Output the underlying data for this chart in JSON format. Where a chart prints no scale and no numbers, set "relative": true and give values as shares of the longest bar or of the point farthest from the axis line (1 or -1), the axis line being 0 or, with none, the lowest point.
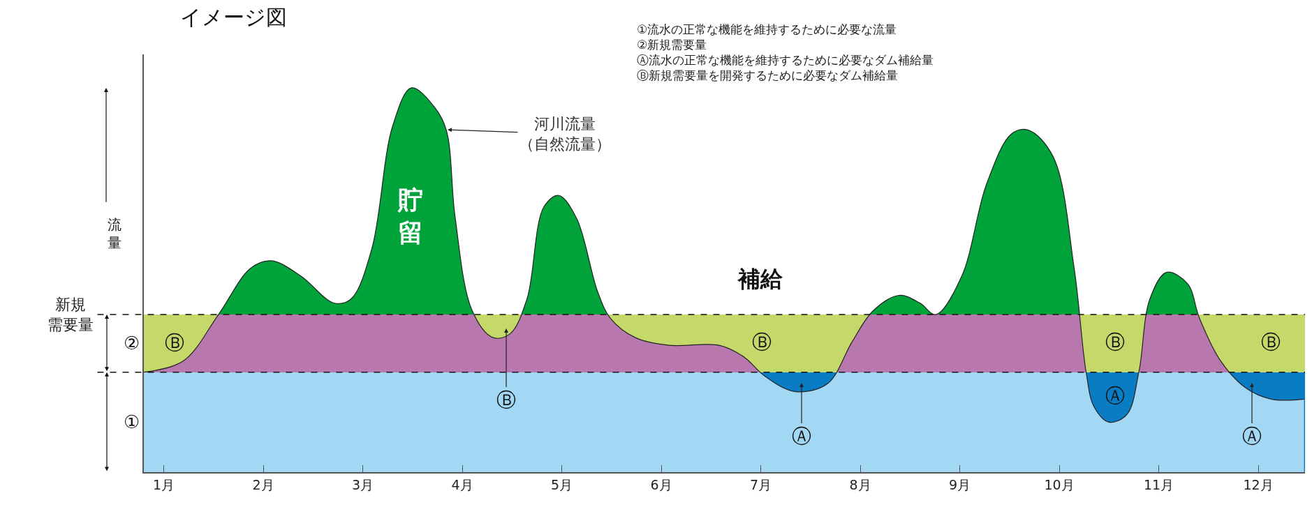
{
  "chart_data": {
    "type": "area",
    "relative": true,
    "title": "イメージ図",
    "ylabel": "流量",
    "x": [
      0.8,
      1.2,
      1.55,
      1.87,
      2.08,
      2.38,
      2.71,
      2.88,
      3.09,
      3.3,
      3.49,
      3.72,
      3.84,
      3.93,
      4.1,
      4.31,
      4.48,
      4.65,
      4.82,
      4.97,
      5.15,
      5.36,
      5.49,
      5.74,
      6.08,
      6.58,
      6.83,
      7.04,
      7.34,
      7.67,
      7.92,
      8.13,
      8.39,
      8.6,
      8.76,
      9.02,
      9.27,
      9.52,
      9.69,
      9.94,
      10.15,
      10.27,
      10.35,
      10.5,
      10.68,
      10.8,
      10.91,
      11.08,
      11.29,
      11.41,
      11.62,
      11.87,
      12.13,
      12.46
    ],
    "xlim": [
      0.8,
      12.47
    ],
    "xticks": [
      {
        "value": 1,
        "label": "1月"
      },
      {
        "value": 2,
        "label": "2月"
      },
      {
        "value": 3,
        "label": "3月"
      },
      {
        "value": 4,
        "label": "4月"
      },
      {
        "value": 5,
        "label": "5月"
      },
      {
        "value": 6,
        "label": "6月"
      },
      {
        "value": 7,
        "label": "7月"
      },
      {
        "value": 8,
        "label": "8月"
      },
      {
        "value": 9,
        "label": "9月"
      },
      {
        "value": 10,
        "label": "10月"
      },
      {
        "value": 11,
        "label": "11月"
      },
      {
        "value": 12,
        "label": "12月"
      }
    ],
    "series": [
      {
        "color": "#00a33a",
        "values": [
          0.26,
          0.29,
          0.41,
          0.53,
          0.55,
          0.51,
          0.44,
          0.45,
          0.58,
          0.9,
          1,
          0.95,
          0.89,
          0.66,
          0.42,
          0.35,
          0.36,
          0.45,
          0.69,
          0.72,
          0.66,
          0.47,
          0.4,
          0.35,
          0.33,
          0.33,
          0.3,
          0.25,
          0.21,
          0.23,
          0.34,
          0.42,
          0.46,
          0.44,
          0.41,
          0.51,
          0.75,
          0.88,
          0.89,
          0.82,
          0.53,
          0.26,
          0.17,
          0.13,
          0.15,
          0.26,
          0.45,
          0.52,
          0.49,
          0.4,
          0.29,
          0.22,
          0.19,
          0.19
        ]
      }
    ],
    "bands": [
      {
        "axis": "y",
        "from": 0,
        "to": 0.26,
        "label": "①",
        "color": "#0a7cc4"
      },
      {
        "axis": "y",
        "from": 0.26,
        "to": 0.41,
        "label": "②",
        "color": "#c4d96a"
      }
    ],
    "ref_lines": [
      {
        "axis": "y",
        "value": 0.26,
        "line_style": "dashed"
      },
      {
        "axis": "y",
        "value": 0.41,
        "label": "新規需要量",
        "line_style": "dashed"
      }
    ],
    "annotations": [
      "①流水の正常な機能を維持するために必要な流量\n②新規需要量\nⒶ流水の正常な機能を維持するために必要なダム補給量\nⒷ新規需要量を開発するために必要なダム補給量",
      "河川流量（自然流量）",
      "貯留",
      "補給",
      "Ⓑ",
      "Ⓑ",
      "Ⓑ",
      "Ⓑ",
      "Ⓑ",
      "Ⓐ",
      "Ⓐ",
      "Ⓐ"
    ]
  }
}
